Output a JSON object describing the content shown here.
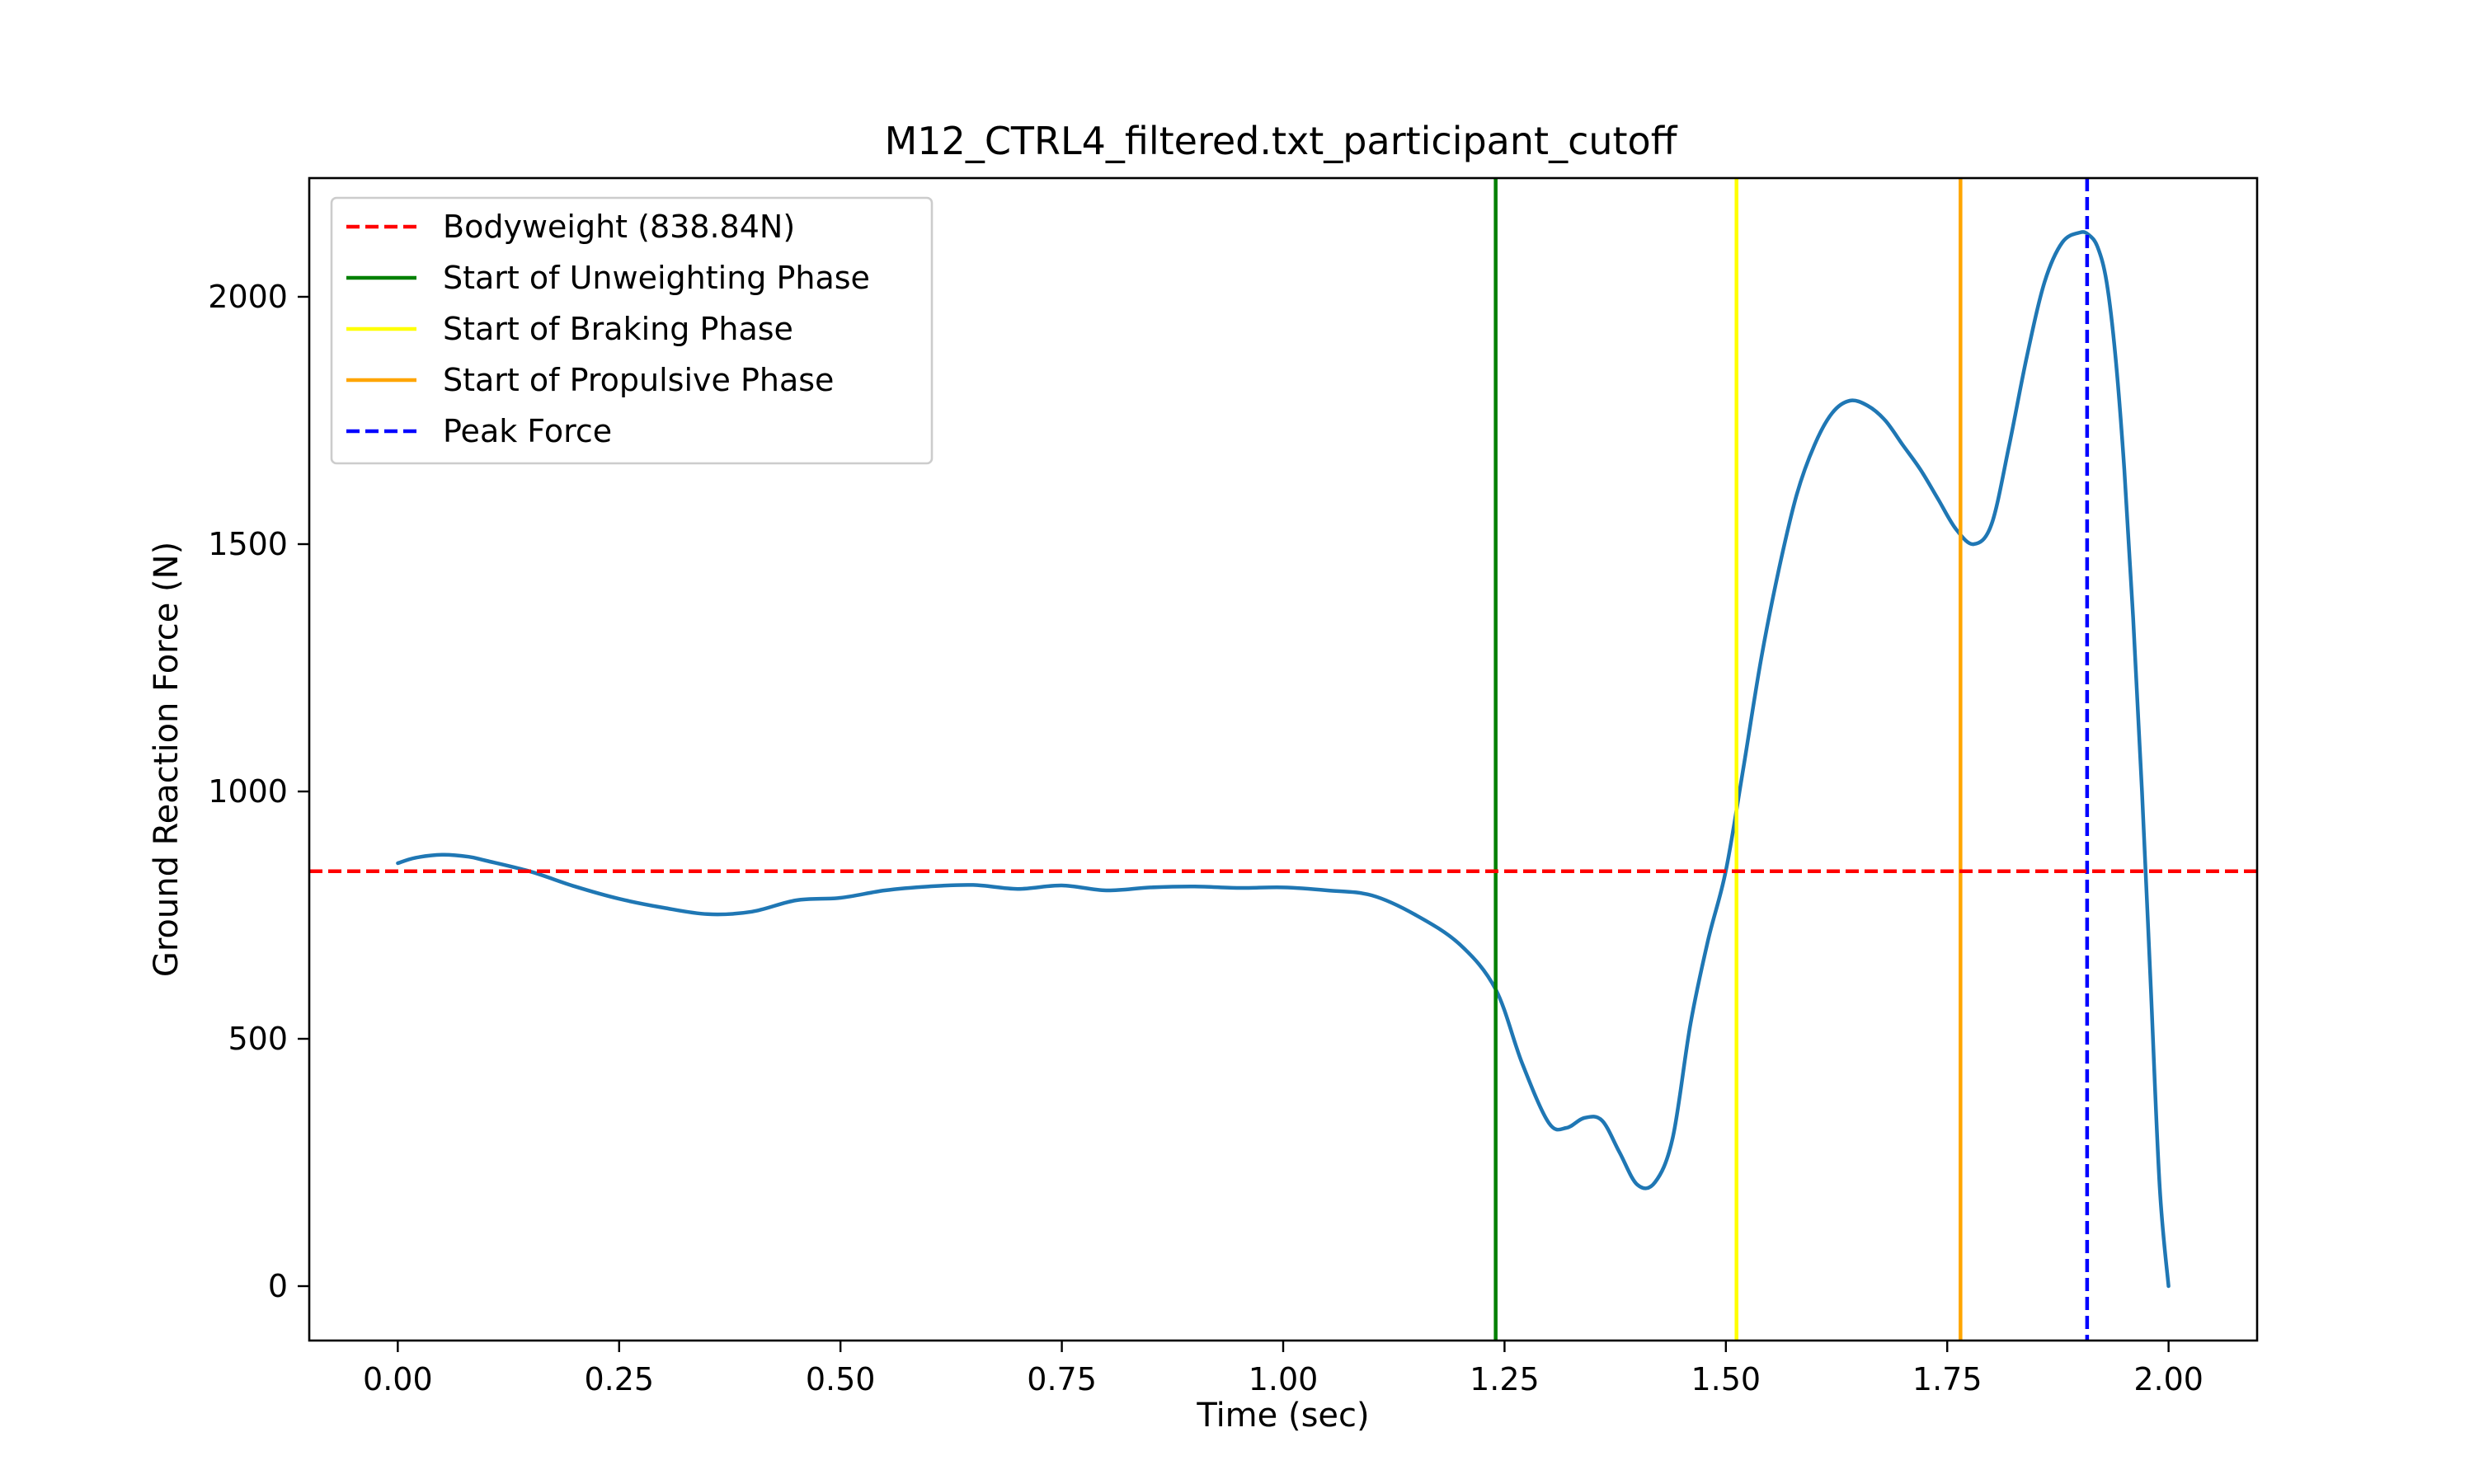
{
  "chart_data": {
    "type": "line",
    "title": "M12_CTRL4_filtered.txt_participant_cutoff",
    "xlabel": "Time (sec)",
    "ylabel": "Ground Reaction Force (N)",
    "xlim": [
      -0.1,
      2.1
    ],
    "ylim": [
      -110,
      2240
    ],
    "xticks": [
      0.0,
      0.25,
      0.5,
      0.75,
      1.0,
      1.25,
      1.5,
      1.75,
      2.0
    ],
    "xtick_labels": [
      "0.00",
      "0.25",
      "0.50",
      "0.75",
      "1.00",
      "1.25",
      "1.50",
      "1.75",
      "2.00"
    ],
    "yticks": [
      0,
      500,
      1000,
      1500,
      2000
    ],
    "ytick_labels": [
      "0",
      "500",
      "1000",
      "1500",
      "2000"
    ],
    "grid": false,
    "legend_position": "top-left",
    "series": [
      {
        "color": "#1f77b4",
        "x": [
          0.0,
          0.02,
          0.05,
          0.08,
          0.1,
          0.15,
          0.2,
          0.25,
          0.3,
          0.35,
          0.4,
          0.45,
          0.5,
          0.55,
          0.6,
          0.65,
          0.7,
          0.75,
          0.8,
          0.85,
          0.9,
          0.95,
          1.0,
          1.05,
          1.1,
          1.15,
          1.2,
          1.24,
          1.27,
          1.3,
          1.32,
          1.34,
          1.36,
          1.38,
          1.4,
          1.42,
          1.44,
          1.46,
          1.48,
          1.5,
          1.52,
          1.54,
          1.56,
          1.58,
          1.6,
          1.62,
          1.64,
          1.66,
          1.68,
          1.7,
          1.72,
          1.74,
          1.76,
          1.78,
          1.8,
          1.82,
          1.84,
          1.86,
          1.88,
          1.9,
          1.91,
          1.92,
          1.93,
          1.94,
          1.95,
          1.96,
          1.97,
          1.98,
          1.99,
          2.0
        ],
        "y": [
          855,
          866,
          872,
          868,
          860,
          838,
          808,
          783,
          765,
          752,
          757,
          780,
          785,
          800,
          808,
          811,
          803,
          810,
          800,
          806,
          808,
          805,
          806,
          800,
          790,
          750,
          690,
          600,
          450,
          330,
          320,
          340,
          335,
          270,
          205,
          210,
          300,
          530,
          700,
          840,
          1050,
          1270,
          1450,
          1600,
          1700,
          1765,
          1790,
          1780,
          1750,
          1700,
          1650,
          1590,
          1530,
          1500,
          1540,
          1700,
          1880,
          2030,
          2110,
          2130,
          2125,
          2100,
          2030,
          1880,
          1650,
          1350,
          1000,
          600,
          200,
          0
        ]
      }
    ],
    "lines": [
      {
        "label": "Bodyweight (838.84N)",
        "orientation": "horizontal",
        "value": 838.84,
        "color": "#ff0000",
        "style": "dashed"
      },
      {
        "label": "Start of Unweighting Phase",
        "orientation": "vertical",
        "value": 1.24,
        "color": "#008000",
        "style": "solid"
      },
      {
        "label": "Start of Braking Phase",
        "orientation": "vertical",
        "value": 1.512,
        "color": "#ffff00",
        "style": "solid"
      },
      {
        "label": "Start of Propulsive Phase",
        "orientation": "vertical",
        "value": 1.765,
        "color": "#ffa500",
        "style": "solid"
      },
      {
        "label": "Peak Force",
        "orientation": "vertical",
        "value": 1.908,
        "color": "#0000ff",
        "style": "dashed"
      }
    ]
  }
}
